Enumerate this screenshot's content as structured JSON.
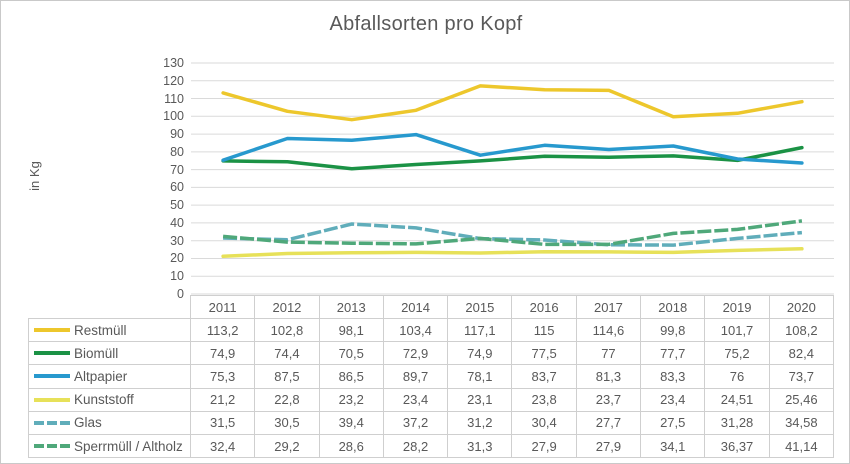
{
  "chart_data": {
    "type": "line",
    "title": "Abfallsorten pro Kopf",
    "ylabel": "in Kg",
    "xlabel": "",
    "ylim": [
      0,
      130
    ],
    "ytick_step": 10,
    "grid": true,
    "legend_position": "table-left",
    "decimal_separator": ",",
    "categories": [
      "2011",
      "2012",
      "2013",
      "2014",
      "2015",
      "2016",
      "2017",
      "2018",
      "2019",
      "2020"
    ],
    "series": [
      {
        "name": "Restmüll",
        "color": "#edc72c",
        "dash": "solid",
        "values": [
          113.2,
          102.8,
          98.1,
          103.4,
          117.1,
          115,
          114.6,
          99.8,
          101.7,
          108.2
        ]
      },
      {
        "name": "Biomüll",
        "color": "#1b9245",
        "dash": "solid",
        "values": [
          74.9,
          74.4,
          70.5,
          72.9,
          74.9,
          77.5,
          77,
          77.7,
          75.2,
          82.4
        ]
      },
      {
        "name": "Altpapier",
        "color": "#2799ce",
        "dash": "solid",
        "values": [
          75.3,
          87.5,
          86.5,
          89.7,
          78.1,
          83.7,
          81.3,
          83.3,
          76,
          73.7
        ]
      },
      {
        "name": "Kunststoff",
        "color": "#e7e159",
        "dash": "solid",
        "values": [
          21.2,
          22.8,
          23.2,
          23.4,
          23.1,
          23.8,
          23.7,
          23.4,
          24.51,
          25.46
        ]
      },
      {
        "name": "Glas",
        "color": "#60adba",
        "dash": "dashed",
        "values": [
          31.5,
          30.5,
          39.4,
          37.2,
          31.2,
          30.4,
          27.7,
          27.5,
          31.28,
          34.58
        ]
      },
      {
        "name": "Sperrmüll / Altholz",
        "color": "#4fa87a",
        "dash": "dashed",
        "values": [
          32.4,
          29.2,
          28.6,
          28.2,
          31.3,
          27.9,
          27.9,
          34.1,
          36.37,
          41.14
        ]
      }
    ],
    "style": {
      "gridline_color": "#dadada",
      "text_color": "#595959",
      "table_border_color": "#cfcfcf",
      "line_width": 3.5
    }
  }
}
